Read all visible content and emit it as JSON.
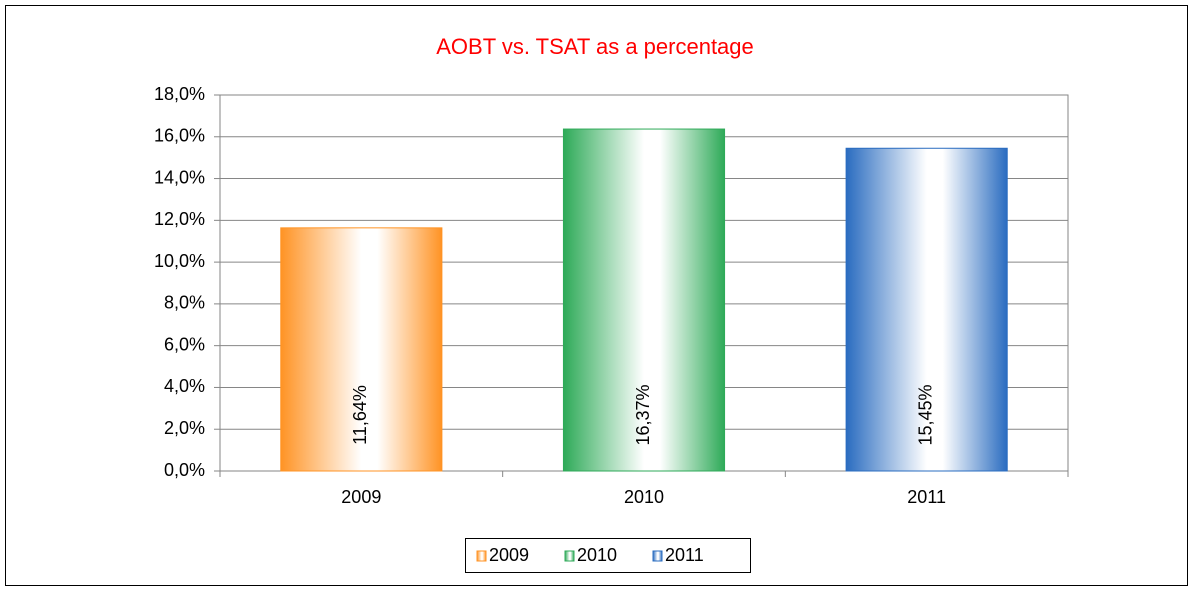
{
  "chart_data": {
    "type": "bar",
    "title": "AOBT vs. TSAT as a percentage",
    "categories": [
      "2009",
      "2010",
      "2011"
    ],
    "values": [
      11.64,
      16.37,
      15.45
    ],
    "value_labels": [
      "11,64%",
      "16,37%",
      "15,45%"
    ],
    "colors": [
      "#ff9324",
      "#2eaa58",
      "#2a6cc0"
    ],
    "ylim": [
      0,
      18
    ],
    "yticks": [
      {
        "value": 0,
        "label": "0,0%"
      },
      {
        "value": 2,
        "label": "2,0%"
      },
      {
        "value": 4,
        "label": "4,0%"
      },
      {
        "value": 6,
        "label": "6,0%"
      },
      {
        "value": 8,
        "label": "8,0%"
      },
      {
        "value": 10,
        "label": "10,0%"
      },
      {
        "value": 12,
        "label": "12,0%"
      },
      {
        "value": 14,
        "label": "14,0%"
      },
      {
        "value": 16,
        "label": "16,0%"
      },
      {
        "value": 18,
        "label": "18,0%"
      }
    ],
    "grid": true,
    "legend": "bottom"
  }
}
